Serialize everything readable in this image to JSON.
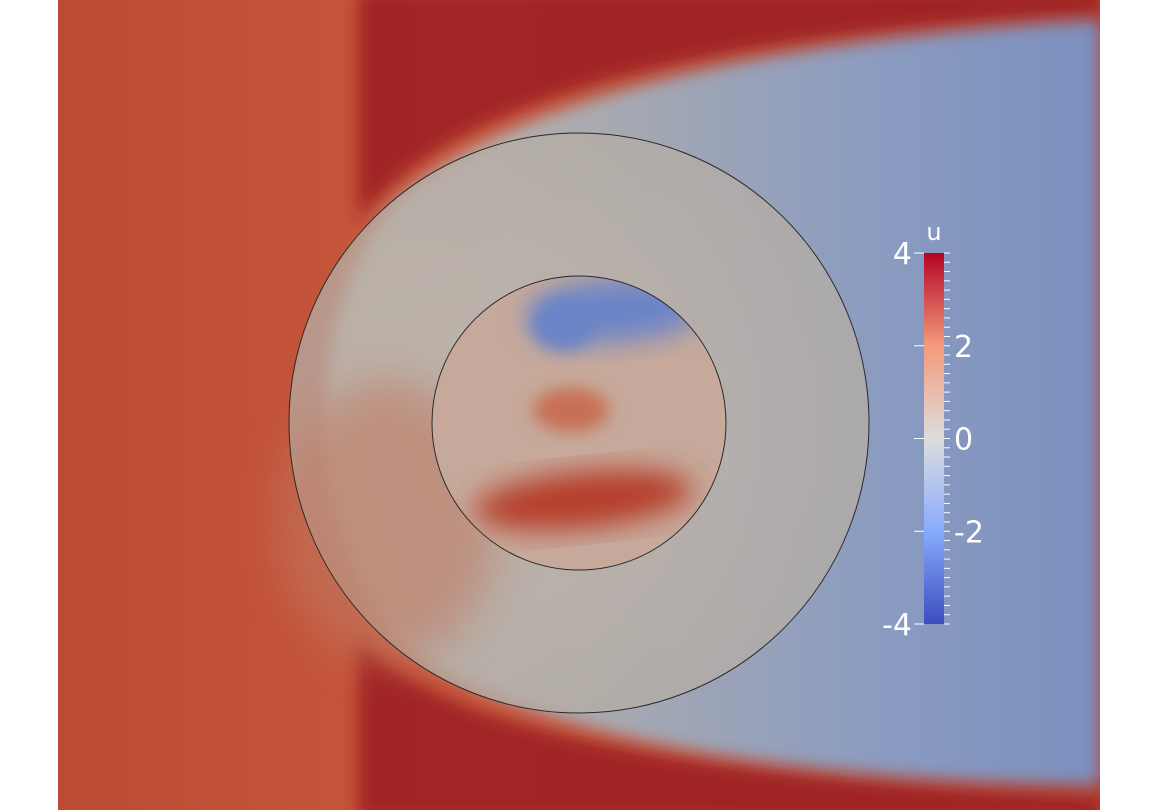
{
  "colorbar": {
    "title": "u",
    "range": [
      -4,
      4
    ],
    "ticks": [
      {
        "value": 4,
        "label": "4"
      },
      {
        "value": 2,
        "label": "2"
      },
      {
        "value": 0,
        "label": "0"
      },
      {
        "value": -2,
        "label": "-2"
      },
      {
        "value": -4,
        "label": "-4"
      }
    ],
    "colormap": [
      "#3b4cc0",
      "#88abfd",
      "#dddddd",
      "#f49a7b",
      "#b40426"
    ]
  },
  "colors": {
    "free_stream": "#b2402f",
    "shear_layer": "#9c1f24",
    "wake": "#8096c0",
    "annulus": "#b8aea2",
    "mesh_lines": "#2a2a2a",
    "legend_text": "#ffffff"
  }
}
